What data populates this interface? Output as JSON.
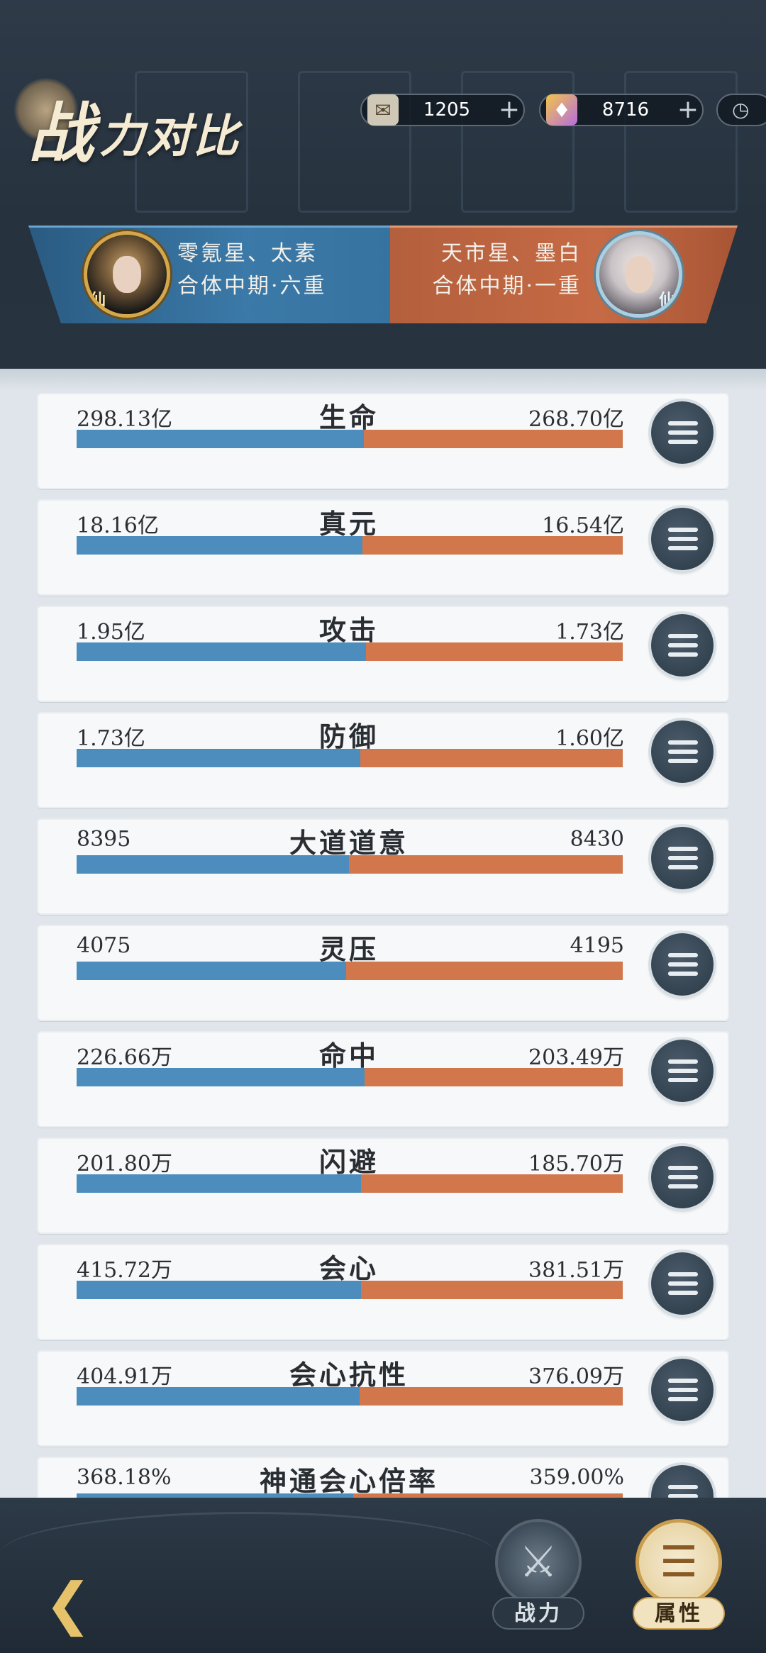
{
  "header": {
    "title_part1": "战",
    "title_part2": "力对比",
    "resources": [
      {
        "icon": "scroll-icon",
        "value": "1205",
        "plus": "+"
      },
      {
        "icon": "crystal-icon",
        "value": "8716",
        "plus": "+"
      }
    ],
    "clock_icon": "clock-icon"
  },
  "versus": {
    "left": {
      "name": "零氪星、太素",
      "realm": "合体中期·六重",
      "badge": "仙"
    },
    "right": {
      "name": "天市星、墨白",
      "realm": "合体中期·一重",
      "badge": "仙"
    }
  },
  "stats": [
    {
      "label": "生命",
      "left": "298.13亿",
      "right": "268.70亿",
      "left_share": 0.526
    },
    {
      "label": "真元",
      "left": "18.16亿",
      "right": "16.54亿",
      "left_share": 0.523
    },
    {
      "label": "攻击",
      "left": "1.95亿",
      "right": "1.73亿",
      "left_share": 0.53
    },
    {
      "label": "防御",
      "left": "1.73亿",
      "right": "1.60亿",
      "left_share": 0.52
    },
    {
      "label": "大道道意",
      "left": "8395",
      "right": "8430",
      "left_share": 0.499
    },
    {
      "label": "灵压",
      "left": "4075",
      "right": "4195",
      "left_share": 0.493
    },
    {
      "label": "命中",
      "left": "226.66万",
      "right": "203.49万",
      "left_share": 0.527
    },
    {
      "label": "闪避",
      "left": "201.80万",
      "right": "185.70万",
      "left_share": 0.521
    },
    {
      "label": "会心",
      "left": "415.72万",
      "right": "381.51万",
      "left_share": 0.521
    },
    {
      "label": "会心抗性",
      "left": "404.91万",
      "right": "376.09万",
      "left_share": 0.518
    },
    {
      "label": "神通会心倍率",
      "left": "368.18%",
      "right": "359.00%",
      "left_share": 0.506
    }
  ],
  "bottom": {
    "back_icon": "back-arrow-icon",
    "tabs": [
      {
        "label": "战力",
        "icon": "crossed-swords-icon"
      },
      {
        "label": "属性",
        "icon": "scroll-list-icon"
      }
    ]
  },
  "colors": {
    "left_bar": "#4c8dbd",
    "right_bar": "#d2774c",
    "accent_gold": "#e6c36b"
  }
}
